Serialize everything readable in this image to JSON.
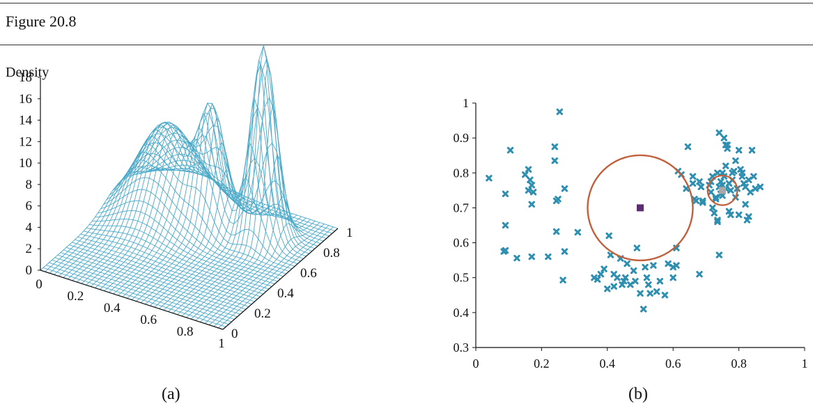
{
  "header": {
    "figure_label": "Figure 20.8"
  },
  "colors": {
    "mesh": "#4aa8c8",
    "point": "#2e8fb0",
    "circle": "#c0603c",
    "center": "#5b2c6f",
    "small_center": "#a8a8a8"
  },
  "chart_data": [
    {
      "id": "a",
      "type": "surface",
      "caption": "(a)",
      "zlabel": "Density",
      "z_ticks": [
        "0",
        "2",
        "4",
        "6",
        "8",
        "10",
        "12",
        "14",
        "16",
        "18"
      ],
      "x_ticks": [
        "0",
        "0.2",
        "0.4",
        "0.6",
        "0.8",
        "1"
      ],
      "y_ticks": [
        "0",
        "0.2",
        "0.4",
        "0.6",
        "0.8",
        "1"
      ],
      "xlim": [
        0,
        1
      ],
      "ylim": [
        0,
        1
      ],
      "zlim": [
        0,
        18
      ],
      "peaks": [
        {
          "x": 0.25,
          "y": 0.7,
          "height": 8.5,
          "width": 0.14
        },
        {
          "x": 0.5,
          "y": 0.7,
          "height": 10.0,
          "width": 0.065
        },
        {
          "x": 0.75,
          "y": 0.75,
          "height": 18.0,
          "width": 0.06
        }
      ],
      "grid_resolution": 40
    },
    {
      "id": "b",
      "type": "scatter",
      "caption": "(b)",
      "xlim": [
        0,
        1
      ],
      "ylim": [
        0.3,
        1
      ],
      "x_ticks": [
        "0",
        "0.2",
        "0.4",
        "0.6",
        "0.8",
        "1"
      ],
      "y_ticks": [
        "0.3",
        "0.4",
        "0.5",
        "0.6",
        "0.7",
        "0.8",
        "0.9",
        "1"
      ],
      "large_circle": {
        "cx": 0.5,
        "cy": 0.7,
        "r": 0.16
      },
      "small_circle": {
        "cx": 0.75,
        "cy": 0.75,
        "r": 0.045
      },
      "center_marker": {
        "x": 0.5,
        "y": 0.7
      },
      "small_center_marker": {
        "x": 0.75,
        "y": 0.75
      },
      "points": [
        [
          0.04,
          0.785
        ],
        [
          0.09,
          0.74
        ],
        [
          0.105,
          0.865
        ],
        [
          0.09,
          0.65
        ],
        [
          0.085,
          0.575
        ],
        [
          0.09,
          0.578
        ],
        [
          0.125,
          0.556
        ],
        [
          0.15,
          0.795
        ],
        [
          0.16,
          0.81
        ],
        [
          0.165,
          0.78
        ],
        [
          0.17,
          0.765
        ],
        [
          0.16,
          0.75
        ],
        [
          0.175,
          0.745
        ],
        [
          0.17,
          0.71
        ],
        [
          0.17,
          0.56
        ],
        [
          0.24,
          0.875
        ],
        [
          0.24,
          0.835
        ],
        [
          0.255,
          0.975
        ],
        [
          0.27,
          0.755
        ],
        [
          0.25,
          0.725
        ],
        [
          0.245,
          0.72
        ],
        [
          0.245,
          0.632
        ],
        [
          0.27,
          0.575
        ],
        [
          0.265,
          0.493
        ],
        [
          0.22,
          0.56
        ],
        [
          0.31,
          0.63
        ],
        [
          0.36,
          0.5
        ],
        [
          0.37,
          0.495
        ],
        [
          0.39,
          0.525
        ],
        [
          0.405,
          0.62
        ],
        [
          0.41,
          0.565
        ],
        [
          0.42,
          0.51
        ],
        [
          0.43,
          0.5
        ],
        [
          0.44,
          0.555
        ],
        [
          0.445,
          0.48
        ],
        [
          0.45,
          0.49
        ],
        [
          0.455,
          0.5
        ],
        [
          0.46,
          0.54
        ],
        [
          0.47,
          0.48
        ],
        [
          0.48,
          0.52
        ],
        [
          0.485,
          0.49
        ],
        [
          0.49,
          0.585
        ],
        [
          0.5,
          0.455
        ],
        [
          0.51,
          0.41
        ],
        [
          0.515,
          0.53
        ],
        [
          0.52,
          0.5
        ],
        [
          0.525,
          0.48
        ],
        [
          0.53,
          0.455
        ],
        [
          0.54,
          0.535
        ],
        [
          0.55,
          0.46
        ],
        [
          0.56,
          0.49
        ],
        [
          0.575,
          0.45
        ],
        [
          0.585,
          0.54
        ],
        [
          0.6,
          0.5
        ],
        [
          0.61,
          0.535
        ],
        [
          0.6,
          0.53
        ],
        [
          0.61,
          0.585
        ],
        [
          0.4,
          0.468
        ],
        [
          0.42,
          0.475
        ],
        [
          0.38,
          0.51
        ],
        [
          0.615,
          0.805
        ],
        [
          0.625,
          0.795
        ],
        [
          0.645,
          0.875
        ],
        [
          0.64,
          0.755
        ],
        [
          0.66,
          0.79
        ],
        [
          0.66,
          0.77
        ],
        [
          0.665,
          0.725
        ],
        [
          0.67,
          0.72
        ],
        [
          0.68,
          0.775
        ],
        [
          0.685,
          0.76
        ],
        [
          0.69,
          0.715
        ],
        [
          0.69,
          0.72
        ],
        [
          0.68,
          0.51
        ],
        [
          0.71,
          0.765
        ],
        [
          0.715,
          0.745
        ],
        [
          0.715,
          0.775
        ],
        [
          0.72,
          0.79
        ],
        [
          0.72,
          0.7
        ],
        [
          0.725,
          0.685
        ],
        [
          0.73,
          0.73
        ],
        [
          0.73,
          0.725
        ],
        [
          0.735,
          0.8
        ],
        [
          0.735,
          0.66
        ],
        [
          0.735,
          0.665
        ],
        [
          0.74,
          0.915
        ],
        [
          0.74,
          0.565
        ],
        [
          0.745,
          0.74
        ],
        [
          0.745,
          0.775
        ],
        [
          0.75,
          0.8
        ],
        [
          0.75,
          0.765
        ],
        [
          0.75,
          0.735
        ],
        [
          0.755,
          0.9
        ],
        [
          0.755,
          0.79
        ],
        [
          0.76,
          0.82
        ],
        [
          0.76,
          0.88
        ],
        [
          0.765,
          0.88
        ],
        [
          0.765,
          0.87
        ],
        [
          0.77,
          0.77
        ],
        [
          0.77,
          0.69
        ],
        [
          0.775,
          0.75
        ],
        [
          0.775,
          0.68
        ],
        [
          0.78,
          0.78
        ],
        [
          0.78,
          0.8
        ],
        [
          0.785,
          0.805
        ],
        [
          0.79,
          0.835
        ],
        [
          0.79,
          0.73
        ],
        [
          0.795,
          0.755
        ],
        [
          0.8,
          0.865
        ],
        [
          0.8,
          0.68
        ],
        [
          0.805,
          0.81
        ],
        [
          0.81,
          0.79
        ],
        [
          0.81,
          0.8
        ],
        [
          0.815,
          0.77
        ],
        [
          0.82,
          0.76
        ],
        [
          0.82,
          0.71
        ],
        [
          0.825,
          0.665
        ],
        [
          0.83,
          0.78
        ],
        [
          0.83,
          0.675
        ],
        [
          0.835,
          0.745
        ],
        [
          0.84,
          0.865
        ],
        [
          0.845,
          0.79
        ],
        [
          0.85,
          0.755
        ],
        [
          0.865,
          0.76
        ],
        [
          0.76,
          0.755
        ],
        [
          0.74,
          0.76
        ]
      ]
    }
  ]
}
